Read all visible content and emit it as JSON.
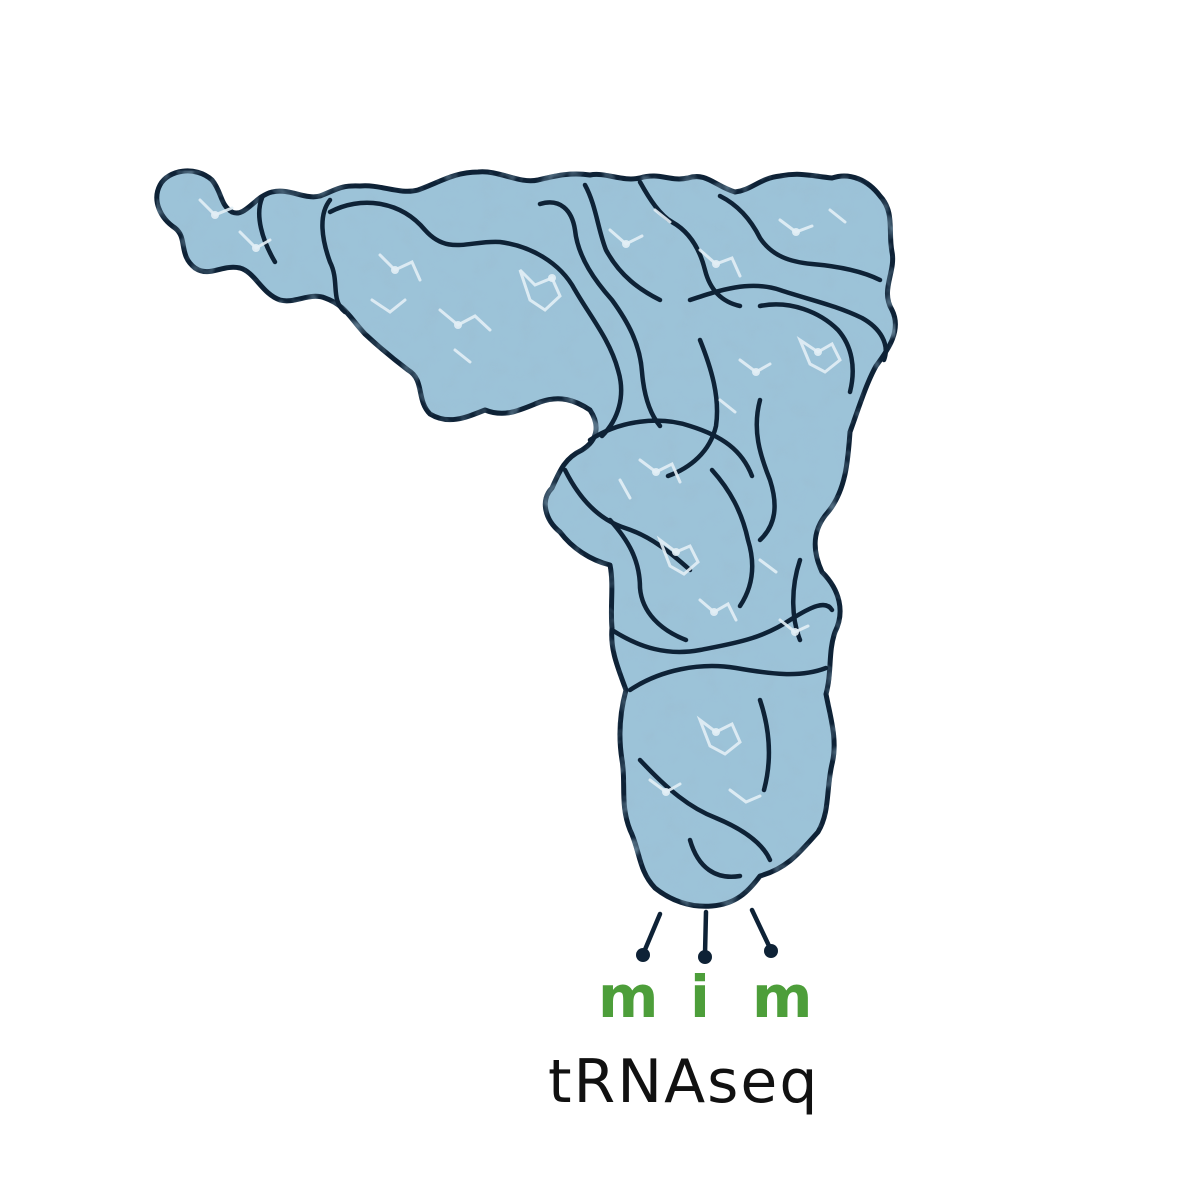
{
  "logo": {
    "letters": [
      "m",
      "i",
      "m"
    ],
    "name": "tRNAseq",
    "colors": {
      "letters": "#4d9e3a",
      "name": "#111111",
      "molecule_fill": "#9cc3d8",
      "molecule_shade": "#6e9fbd",
      "molecule_highlight": "#dcebf3",
      "outline": "#0e2236"
    },
    "illustration": "trna-molecule"
  }
}
